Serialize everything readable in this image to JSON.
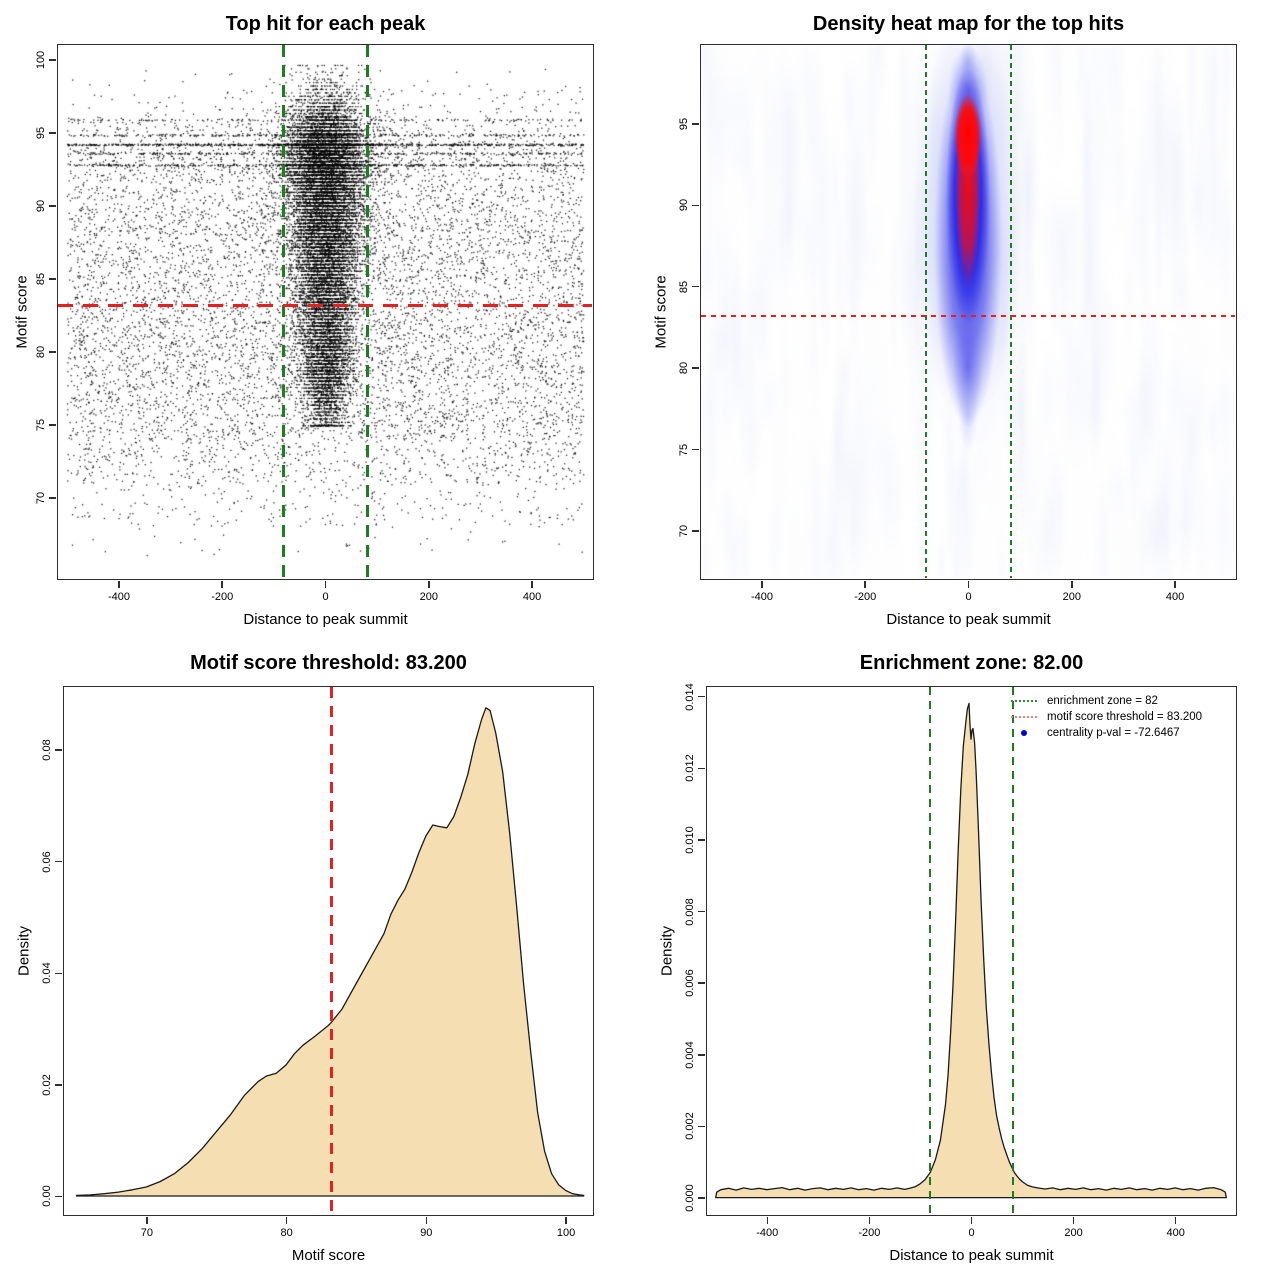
{
  "figure": {
    "background": "#ffffff"
  },
  "colors": {
    "threshold_red": "#e42020",
    "enrichment_green": "#1e7d1e",
    "density_fill": "#f5dfb2",
    "density_stroke": "#1a1a1a",
    "scatter_point": "#000000",
    "heat_blue": "#2222e6",
    "heat_red": "#ff0000",
    "legend_green": "#2e8b2e",
    "legend_red": "#f08080",
    "legend_blue": "#0000e8",
    "axis": "#2e2e2e"
  },
  "chart_data": [
    {
      "id": "top-hit-scatter",
      "type": "scatter",
      "title": "Top hit for each peak",
      "xlabel": "Distance to peak summit",
      "ylabel": "Motif score",
      "xlim": [
        -520,
        520
      ],
      "ylim": [
        64.4,
        101.1
      ],
      "x_ticks": [
        -400,
        -200,
        0,
        200,
        400
      ],
      "x_tick_labels": [
        "-400",
        "-200",
        "0",
        "200",
        "400"
      ],
      "y_ticks": [
        70,
        75,
        80,
        85,
        90,
        95,
        100
      ],
      "y_tick_labels": [
        "70",
        "75",
        "80",
        "85",
        "90",
        "95",
        "100"
      ],
      "grid": false,
      "threshold_line": {
        "axis": "y",
        "value": 83.2
      },
      "enrichment_lines": {
        "axis": "x",
        "values": [
          -82,
          82
        ]
      },
      "generator": {
        "seed": 1337,
        "background": {
          "n": 8200,
          "x_range": [
            -500,
            500
          ],
          "score_bands": [
            [
              66,
              68,
              0.05
            ],
            [
              68,
              71,
              0.22
            ],
            [
              71,
              74,
              0.5
            ],
            [
              74,
              78,
              0.9
            ],
            [
              78,
              82,
              1.0
            ],
            [
              82,
              86,
              0.92
            ],
            [
              86,
              90,
              0.88
            ],
            [
              90,
              94,
              0.8
            ],
            [
              94,
              96,
              0.5
            ],
            [
              96,
              98,
              0.2
            ],
            [
              98,
              99.5,
              0.05
            ]
          ]
        },
        "stripes": [
          {
            "score": 94.2,
            "n": 620
          },
          {
            "score": 92.8,
            "n": 380
          },
          {
            "score": 93.6,
            "n": 250
          },
          {
            "score": 94.85,
            "n": 240
          },
          {
            "score": 95.9,
            "n": 120
          }
        ],
        "cluster": {
          "n": 16000,
          "x_center": 0,
          "x_sigma_base": 20,
          "x_sigma_slope": 1.0,
          "x_sigma_max": 38,
          "halo_fraction": 0.06,
          "halo_sigma": 70,
          "y_mixture": [
            [
              93.5,
              2.2,
              0.35
            ],
            [
              89.5,
              2.8,
              0.25
            ],
            [
              85.5,
              3.0,
              0.2
            ],
            [
              81.0,
              2.5,
              0.12
            ],
            [
              78.0,
              1.8,
              0.08
            ]
          ],
          "y_clip": [
            75,
            99.6
          ],
          "quantize_step": 0.235,
          "quantize_fraction": 0.75
        }
      }
    },
    {
      "id": "density-heatmap",
      "type": "heatmap",
      "title": "Density heat map for the top hits",
      "xlabel": "Distance to peak summit",
      "ylabel": "Motif score",
      "xlim": [
        -520,
        520
      ],
      "ylim": [
        67.0,
        99.9
      ],
      "x_ticks": [
        -400,
        -200,
        0,
        200,
        400
      ],
      "x_tick_labels": [
        "-400",
        "-200",
        "0",
        "200",
        "400"
      ],
      "y_ticks": [
        70,
        75,
        80,
        85,
        90,
        95
      ],
      "y_tick_labels": [
        "70",
        "75",
        "80",
        "85",
        "90",
        "95"
      ],
      "threshold_line": {
        "axis": "y",
        "value": 83.2
      },
      "enrichment_lines": {
        "axis": "x",
        "values": [
          -82,
          82
        ]
      },
      "hotspot": {
        "x_center": 0,
        "blue_score_range": [
          76.5,
          98.6
        ],
        "red_core_score_range": [
          86.5,
          95.5
        ],
        "brightest_score": 94.2,
        "noise_seed": 77
      }
    },
    {
      "id": "motif-score-density",
      "type": "area",
      "title": "Motif score threshold: 83.200",
      "xlabel": "Motif score",
      "ylabel": "Density",
      "xlim": [
        64,
        102
      ],
      "ylim": [
        -0.0035,
        0.0915
      ],
      "x_ticks": [
        70,
        80,
        90,
        100
      ],
      "x_tick_labels": [
        "70",
        "80",
        "90",
        "100"
      ],
      "y_ticks": [
        0,
        0.02,
        0.04,
        0.06,
        0.08
      ],
      "y_tick_labels": [
        "0.00",
        "0.02",
        "0.04",
        "0.06",
        "0.08"
      ],
      "threshold_line": {
        "axis": "x",
        "value": 83.2
      },
      "curve": [
        [
          65,
          0.0001
        ],
        [
          66,
          0.0002
        ],
        [
          67,
          0.0004
        ],
        [
          68,
          0.0007
        ],
        [
          69,
          0.0011
        ],
        [
          70,
          0.0016
        ],
        [
          71,
          0.0026
        ],
        [
          72,
          0.004
        ],
        [
          73,
          0.006
        ],
        [
          74,
          0.0085
        ],
        [
          75,
          0.0115
        ],
        [
          76,
          0.0145
        ],
        [
          77,
          0.018
        ],
        [
          78,
          0.0205
        ],
        [
          78.6,
          0.0215
        ],
        [
          79.3,
          0.022
        ],
        [
          80,
          0.0235
        ],
        [
          80.6,
          0.0255
        ],
        [
          81.2,
          0.027
        ],
        [
          82,
          0.0285
        ],
        [
          83,
          0.0305
        ],
        [
          83.2,
          0.031
        ],
        [
          84,
          0.0335
        ],
        [
          85,
          0.038
        ],
        [
          86,
          0.0425
        ],
        [
          87,
          0.047
        ],
        [
          87.5,
          0.0505
        ],
        [
          88,
          0.053
        ],
        [
          88.5,
          0.055
        ],
        [
          89,
          0.058
        ],
        [
          89.5,
          0.0615
        ],
        [
          90,
          0.0645
        ],
        [
          90.5,
          0.0665
        ],
        [
          91,
          0.0662
        ],
        [
          91.5,
          0.066
        ],
        [
          92,
          0.068
        ],
        [
          92.5,
          0.0715
        ],
        [
          93,
          0.0755
        ],
        [
          93.5,
          0.081
        ],
        [
          94,
          0.0855
        ],
        [
          94.3,
          0.0875
        ],
        [
          94.6,
          0.087
        ],
        [
          95,
          0.083
        ],
        [
          95.5,
          0.076
        ],
        [
          96,
          0.065
        ],
        [
          96.5,
          0.052
        ],
        [
          97,
          0.038
        ],
        [
          97.5,
          0.026
        ],
        [
          98,
          0.015
        ],
        [
          98.5,
          0.008
        ],
        [
          99,
          0.004
        ],
        [
          99.5,
          0.002
        ],
        [
          100,
          0.001
        ],
        [
          100.5,
          0.0004
        ],
        [
          101,
          0.0002
        ],
        [
          101.3,
          0.0001
        ]
      ]
    },
    {
      "id": "summit-distance-density",
      "type": "area",
      "title": "Enrichment zone: 82.00",
      "xlabel": "Distance to peak summit",
      "ylabel": "Density",
      "xlim": [
        -520,
        520
      ],
      "ylim": [
        -0.0005,
        0.0143
      ],
      "x_ticks": [
        -400,
        -200,
        0,
        200,
        400
      ],
      "x_tick_labels": [
        "-400",
        "-200",
        "0",
        "200",
        "400"
      ],
      "y_ticks": [
        0,
        0.002,
        0.004,
        0.006,
        0.008,
        0.01,
        0.012,
        0.014
      ],
      "y_tick_labels": [
        "0.000",
        "0.002",
        "0.004",
        "0.006",
        "0.008",
        "0.010",
        "0.012",
        "0.014"
      ],
      "enrichment_lines": {
        "axis": "x",
        "values": [
          -82,
          82
        ]
      },
      "legend": {
        "items": [
          {
            "swatch": "dotted-line",
            "color": "#2e8b2e",
            "label": "enrichment zone = 82"
          },
          {
            "swatch": "dotted-line",
            "color": "#f08080",
            "label": "motif score threshold = 83.200"
          },
          {
            "swatch": "dot",
            "color": "#0000e8",
            "label": "centrality p-val = -72.6467"
          }
        ]
      },
      "curve": [
        [
          -500,
          0
        ],
        [
          -498,
          0.00015
        ],
        [
          -490,
          0.00022
        ],
        [
          -475,
          0.00026
        ],
        [
          -460,
          0.00021
        ],
        [
          -445,
          0.00027
        ],
        [
          -430,
          0.00023
        ],
        [
          -415,
          0.00026
        ],
        [
          -400,
          0.00022
        ],
        [
          -385,
          0.00025
        ],
        [
          -370,
          0.00028
        ],
        [
          -355,
          0.00022
        ],
        [
          -340,
          0.00026
        ],
        [
          -325,
          0.00021
        ],
        [
          -310,
          0.00025
        ],
        [
          -295,
          0.00027
        ],
        [
          -280,
          0.00022
        ],
        [
          -265,
          0.00026
        ],
        [
          -250,
          0.00023
        ],
        [
          -235,
          0.00027
        ],
        [
          -220,
          0.00022
        ],
        [
          -205,
          0.00025
        ],
        [
          -190,
          0.00021
        ],
        [
          -175,
          0.00026
        ],
        [
          -160,
          0.00023
        ],
        [
          -145,
          0.00027
        ],
        [
          -130,
          0.00023
        ],
        [
          -120,
          0.00026
        ],
        [
          -110,
          0.0003
        ],
        [
          -100,
          0.00038
        ],
        [
          -90,
          0.0005
        ],
        [
          -80,
          0.0007
        ],
        [
          -70,
          0.00105
        ],
        [
          -60,
          0.0016
        ],
        [
          -50,
          0.0026
        ],
        [
          -45,
          0.0034
        ],
        [
          -40,
          0.0046
        ],
        [
          -35,
          0.006
        ],
        [
          -30,
          0.0078
        ],
        [
          -25,
          0.0097
        ],
        [
          -20,
          0.0114
        ],
        [
          -15,
          0.0126
        ],
        [
          -10,
          0.0133
        ],
        [
          -7,
          0.01365
        ],
        [
          -4,
          0.0138
        ],
        [
          -2,
          0.0132
        ],
        [
          0,
          0.0128
        ],
        [
          2,
          0.01305
        ],
        [
          4,
          0.0131
        ],
        [
          7,
          0.0127
        ],
        [
          10,
          0.0119
        ],
        [
          15,
          0.0101
        ],
        [
          20,
          0.0082
        ],
        [
          25,
          0.0066
        ],
        [
          30,
          0.0053
        ],
        [
          35,
          0.0043
        ],
        [
          40,
          0.0035
        ],
        [
          45,
          0.0028
        ],
        [
          50,
          0.0023
        ],
        [
          55,
          0.00195
        ],
        [
          60,
          0.00165
        ],
        [
          65,
          0.0014
        ],
        [
          70,
          0.0012
        ],
        [
          75,
          0.001
        ],
        [
          80,
          0.00085
        ],
        [
          85,
          0.0007
        ],
        [
          90,
          0.0006
        ],
        [
          95,
          0.00052
        ],
        [
          100,
          0.00045
        ],
        [
          110,
          0.00035
        ],
        [
          120,
          0.0003
        ],
        [
          130,
          0.00027
        ],
        [
          145,
          0.00024
        ],
        [
          160,
          0.00027
        ],
        [
          175,
          0.00022
        ],
        [
          190,
          0.00026
        ],
        [
          205,
          0.00023
        ],
        [
          220,
          0.00027
        ],
        [
          235,
          0.00022
        ],
        [
          250,
          0.00025
        ],
        [
          265,
          0.00021
        ],
        [
          280,
          0.00026
        ],
        [
          295,
          0.00023
        ],
        [
          310,
          0.00027
        ],
        [
          325,
          0.00022
        ],
        [
          340,
          0.00025
        ],
        [
          355,
          0.00021
        ],
        [
          370,
          0.00026
        ],
        [
          385,
          0.00023
        ],
        [
          400,
          0.00027
        ],
        [
          415,
          0.00022
        ],
        [
          430,
          0.00025
        ],
        [
          445,
          0.00021
        ],
        [
          460,
          0.00026
        ],
        [
          475,
          0.00028
        ],
        [
          490,
          0.00022
        ],
        [
          498,
          0.00015
        ],
        [
          500,
          0
        ]
      ]
    }
  ]
}
